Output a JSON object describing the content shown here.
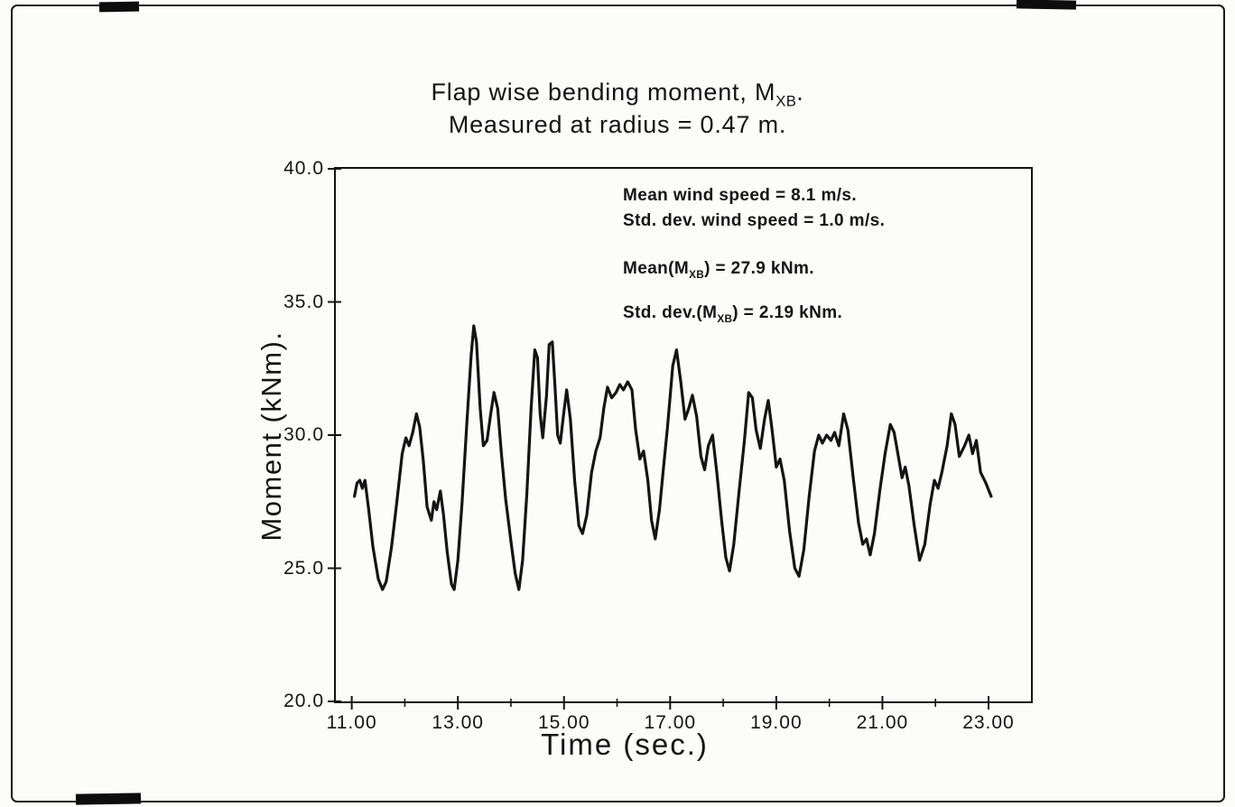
{
  "page": {
    "background": "#fcfcfa",
    "ink": "#141414"
  },
  "title": {
    "line1_prefix": "Flap wise bending moment, M",
    "line1_sub": "XB",
    "line1_suffix": ".",
    "line2": "Measured at radius = 0.47 m."
  },
  "annotations": {
    "wind_mean": "Mean wind speed = 8.1 m/s.",
    "wind_std": "Std. dev. wind speed = 1.0 m/s.",
    "moment_mean_prefix": "Mean(M",
    "moment_mean_sub": "XB",
    "moment_mean_suffix": ") = 27.9 kNm.",
    "moment_std_prefix": "Std. dev.(M",
    "moment_std_sub": "XB",
    "moment_std_suffix": ") = 2.19 kNm."
  },
  "chart_data": {
    "type": "line",
    "title": "Flap wise bending moment, MXB. Measured at radius = 0.47 m.",
    "xlabel": "Time (sec.)",
    "ylabel": "Moment (kNm).",
    "xlim": [
      10.7,
      23.8
    ],
    "ylim": [
      20.0,
      40.0
    ],
    "grid": false,
    "legend": "none",
    "x_ticks": {
      "values": [
        11,
        13,
        15,
        17,
        19,
        21,
        23
      ],
      "labels": [
        "11.00",
        "13.00",
        "15.00",
        "17.00",
        "19.00",
        "21.00",
        "23.00"
      ]
    },
    "x_minor_ticks": [
      12,
      14,
      16,
      18,
      20,
      22
    ],
    "y_ticks": {
      "values": [
        40,
        35,
        30,
        25,
        20
      ],
      "labels": [
        "40.0",
        "35.0",
        "30.0",
        "25.0",
        "20.0"
      ]
    },
    "stats": {
      "mean_wind_speed_ms": 8.1,
      "std_dev_wind_speed_ms": 1.0,
      "mean_MXB_kNm": 27.9,
      "std_dev_MXB_kNm": 2.19
    },
    "series": [
      {
        "name": "MXB flapwise bending moment",
        "x": [
          11.05,
          11.1,
          11.15,
          11.2,
          11.25,
          11.32,
          11.4,
          11.5,
          11.58,
          11.65,
          11.75,
          11.85,
          11.95,
          12.02,
          12.08,
          12.15,
          12.22,
          12.28,
          12.35,
          12.42,
          12.5,
          12.55,
          12.6,
          12.67,
          12.73,
          12.8,
          12.88,
          12.93,
          13.0,
          13.08,
          13.17,
          13.25,
          13.3,
          13.35,
          13.42,
          13.48,
          13.55,
          13.62,
          13.68,
          13.75,
          13.82,
          13.9,
          14.0,
          14.08,
          14.15,
          14.22,
          14.3,
          14.38,
          14.45,
          14.5,
          14.55,
          14.6,
          14.67,
          14.72,
          14.78,
          14.83,
          14.88,
          14.93,
          15.0,
          15.05,
          15.12,
          15.2,
          15.28,
          15.35,
          15.43,
          15.52,
          15.6,
          15.68,
          15.75,
          15.82,
          15.9,
          15.98,
          16.05,
          16.12,
          16.2,
          16.28,
          16.35,
          16.43,
          16.5,
          16.58,
          16.65,
          16.72,
          16.8,
          16.88,
          16.95,
          17.05,
          17.12,
          17.2,
          17.28,
          17.35,
          17.42,
          17.5,
          17.58,
          17.65,
          17.72,
          17.8,
          17.88,
          17.97,
          18.05,
          18.12,
          18.2,
          18.3,
          18.4,
          18.48,
          18.55,
          18.62,
          18.7,
          18.78,
          18.85,
          18.92,
          19.0,
          19.07,
          19.15,
          19.25,
          19.35,
          19.43,
          19.52,
          19.62,
          19.72,
          19.8,
          19.87,
          19.95,
          20.03,
          20.1,
          20.18,
          20.27,
          20.35,
          20.45,
          20.55,
          20.63,
          20.7,
          20.77,
          20.85,
          20.95,
          21.05,
          21.15,
          21.22,
          21.3,
          21.37,
          21.43,
          21.5,
          21.6,
          21.7,
          21.8,
          21.9,
          21.98,
          22.05,
          22.12,
          22.22,
          22.3,
          22.37,
          22.45,
          22.55,
          22.63,
          22.7,
          22.77,
          22.85,
          22.95,
          23.05
        ],
        "y": [
          27.7,
          28.2,
          28.3,
          28.0,
          28.3,
          27.2,
          25.8,
          24.6,
          24.2,
          24.5,
          25.8,
          27.5,
          29.3,
          29.9,
          29.6,
          30.1,
          30.8,
          30.3,
          29.0,
          27.3,
          26.8,
          27.5,
          27.2,
          27.9,
          27.0,
          25.6,
          24.4,
          24.2,
          25.3,
          27.5,
          30.5,
          33.0,
          34.1,
          33.5,
          31.0,
          29.6,
          29.8,
          30.8,
          31.6,
          31.0,
          29.3,
          27.6,
          26.0,
          24.8,
          24.2,
          25.3,
          27.8,
          31.0,
          33.2,
          32.9,
          30.8,
          29.9,
          31.5,
          33.4,
          33.5,
          31.8,
          30.0,
          29.7,
          30.9,
          31.7,
          30.6,
          28.3,
          26.6,
          26.3,
          27.0,
          28.6,
          29.4,
          29.9,
          31.0,
          31.8,
          31.4,
          31.6,
          31.9,
          31.7,
          32.0,
          31.7,
          30.2,
          29.1,
          29.4,
          28.3,
          26.8,
          26.1,
          27.2,
          28.9,
          30.3,
          32.6,
          33.2,
          32.0,
          30.6,
          31.0,
          31.5,
          30.7,
          29.2,
          28.7,
          29.6,
          30.0,
          28.6,
          26.8,
          25.4,
          24.9,
          25.9,
          27.9,
          29.8,
          31.6,
          31.4,
          30.2,
          29.5,
          30.6,
          31.3,
          30.2,
          28.8,
          29.1,
          28.3,
          26.4,
          25.0,
          24.7,
          25.7,
          27.7,
          29.4,
          30.0,
          29.7,
          30.0,
          29.8,
          30.1,
          29.6,
          30.8,
          30.2,
          28.4,
          26.7,
          25.9,
          26.1,
          25.5,
          26.3,
          27.9,
          29.3,
          30.4,
          30.1,
          29.2,
          28.4,
          28.8,
          28.1,
          26.6,
          25.3,
          25.9,
          27.4,
          28.3,
          28.0,
          28.6,
          29.6,
          30.8,
          30.4,
          29.2,
          29.6,
          30.0,
          29.3,
          29.8,
          28.6,
          28.2,
          27.7
        ]
      }
    ]
  }
}
